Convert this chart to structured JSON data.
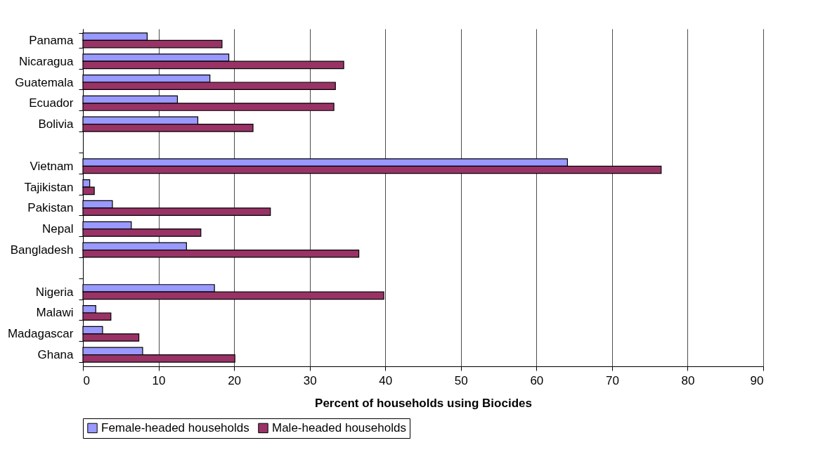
{
  "chart_data": {
    "type": "bar",
    "orientation": "horizontal",
    "xlabel": "Percent of households using Biocides",
    "categories": [
      "Panama",
      "Nicaragua",
      "Guatemala",
      "Ecuador",
      "Bolivia",
      null,
      "Vietnam",
      "Tajikistan",
      "Pakistan",
      "Nepal",
      "Bangladesh",
      null,
      "Nigeria",
      "Malawi",
      "Madagascar",
      "Ghana"
    ],
    "series": [
      {
        "name": "Female-headed households",
        "color": "#9999ff",
        "values": [
          8.5,
          19.3,
          16.8,
          12.5,
          15.2,
          null,
          64.1,
          0.9,
          3.9,
          6.4,
          13.7,
          null,
          17.4,
          1.7,
          2.6,
          7.9
        ]
      },
      {
        "name": "Male-headed households",
        "color": "#993366",
        "values": [
          18.4,
          34.5,
          33.4,
          33.2,
          22.5,
          null,
          76.5,
          1.5,
          24.8,
          15.6,
          36.5,
          null,
          39.8,
          3.7,
          7.4,
          20.1
        ]
      }
    ],
    "xlim": [
      0,
      90
    ],
    "xticks": [
      0,
      10,
      20,
      30,
      40,
      50,
      60,
      70,
      80,
      90
    ],
    "grid": "x",
    "legend": "bottom"
  }
}
